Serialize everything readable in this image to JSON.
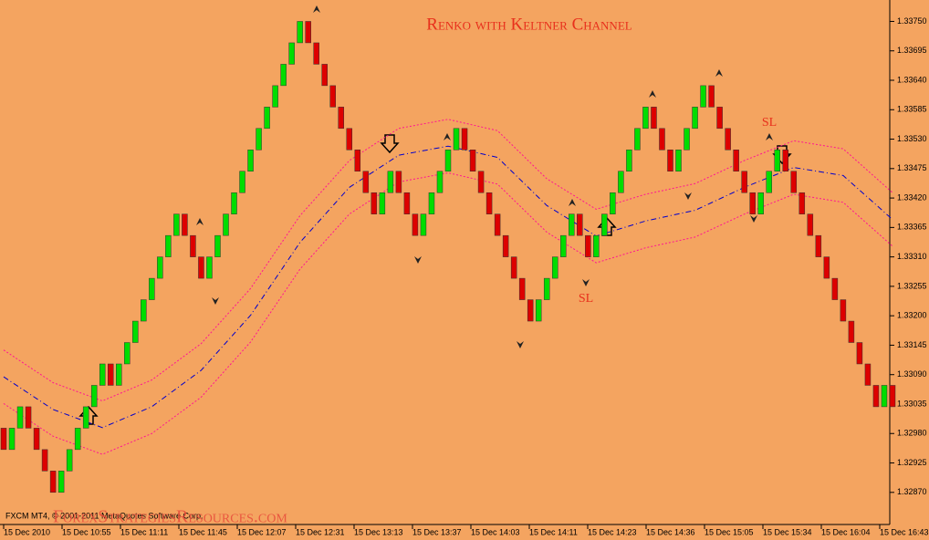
{
  "chart_data": {
    "type": "renko",
    "title": "Renko with Keltner Channel",
    "up_color": "#00dd00",
    "down_color": "#dd0000",
    "open": [
      1.3299,
      1.3295,
      1.3299,
      1.3303,
      1.3299,
      1.3295,
      1.3291,
      1.3287,
      1.3291,
      1.3295,
      1.3299,
      1.3303,
      1.3307,
      1.3311,
      1.3307,
      1.3311,
      1.3315,
      1.3319,
      1.3323,
      1.3327,
      1.3331,
      1.3335,
      1.3339,
      1.3335,
      1.3331,
      1.3327,
      1.3331,
      1.3335,
      1.3339,
      1.3343,
      1.3347,
      1.3351,
      1.3355,
      1.3359,
      1.3363,
      1.3367,
      1.3371,
      1.3375,
      1.3371,
      1.3367,
      1.3363,
      1.3359,
      1.3355,
      1.3351,
      1.3347,
      1.3343,
      1.3339,
      1.3343,
      1.3347,
      1.3343,
      1.3339,
      1.3335,
      1.3339,
      1.3343,
      1.3347,
      1.3351,
      1.3355,
      1.3351,
      1.3347,
      1.3343,
      1.3339,
      1.3335,
      1.3331,
      1.3327,
      1.3323,
      1.3319,
      1.3323,
      1.3327,
      1.3331,
      1.3335,
      1.3339,
      1.3335,
      1.3331,
      1.3335,
      1.3339,
      1.3343,
      1.3347,
      1.3351,
      1.3355,
      1.3359,
      1.3355,
      1.3351,
      1.3347,
      1.3351,
      1.3355,
      1.3359,
      1.3363,
      1.3359,
      1.3355,
      1.3351,
      1.3347,
      1.3343,
      1.3339,
      1.3343,
      1.3347,
      1.3351,
      1.3347,
      1.3343,
      1.3339,
      1.3335,
      1.3331,
      1.3327,
      1.3323,
      1.3319,
      1.3315,
      1.3311,
      1.3307,
      1.3303,
      1.3307
    ],
    "close": [
      1.3295,
      1.3299,
      1.3303,
      1.3299,
      1.3295,
      1.3291,
      1.3287,
      1.3291,
      1.3295,
      1.3299,
      1.3303,
      1.3307,
      1.3311,
      1.3307,
      1.3311,
      1.3315,
      1.3319,
      1.3323,
      1.3327,
      1.3331,
      1.3335,
      1.3339,
      1.3335,
      1.3331,
      1.3327,
      1.3331,
      1.3335,
      1.3339,
      1.3343,
      1.3347,
      1.3351,
      1.3355,
      1.3359,
      1.3363,
      1.3367,
      1.3371,
      1.3375,
      1.3371,
      1.3367,
      1.3363,
      1.3359,
      1.3355,
      1.3351,
      1.3347,
      1.3343,
      1.3339,
      1.3343,
      1.3347,
      1.3343,
      1.3339,
      1.3335,
      1.3339,
      1.3343,
      1.3347,
      1.3351,
      1.3355,
      1.3351,
      1.3347,
      1.3343,
      1.3339,
      1.3335,
      1.3331,
      1.3327,
      1.3323,
      1.3319,
      1.3323,
      1.3327,
      1.3331,
      1.3335,
      1.3339,
      1.3335,
      1.3331,
      1.3335,
      1.3339,
      1.3343,
      1.3347,
      1.3351,
      1.3355,
      1.3359,
      1.3355,
      1.3351,
      1.3347,
      1.3351,
      1.3355,
      1.3359,
      1.3363,
      1.3359,
      1.3355,
      1.3351,
      1.3347,
      1.3343,
      1.3339,
      1.3343,
      1.3347,
      1.3351,
      1.3347,
      1.3343,
      1.3339,
      1.3335,
      1.3331,
      1.3327,
      1.3323,
      1.3319,
      1.3315,
      1.3311,
      1.3307,
      1.3303,
      1.3307,
      1.3303
    ],
    "line_x": [
      0,
      6,
      12,
      18,
      24,
      30,
      36,
      42,
      48,
      54,
      60,
      66,
      72,
      78,
      84,
      90,
      96,
      102,
      108
    ],
    "lines": [
      {
        "color": "#ff1493",
        "style": "dotted",
        "values": [
          1.33136,
          1.33075,
          1.33041,
          1.3308,
          1.33148,
          1.33251,
          1.33387,
          1.3349,
          1.3355,
          1.33567,
          1.33546,
          1.33456,
          1.33399,
          1.33427,
          1.33447,
          1.3349,
          1.33527,
          1.33512,
          1.3343
        ]
      },
      {
        "color": "#0000cc",
        "style": "dashdot",
        "values": [
          1.33086,
          1.33025,
          1.32991,
          1.3303,
          1.33098,
          1.33201,
          1.33337,
          1.3344,
          1.335,
          1.33517,
          1.33496,
          1.33406,
          1.33349,
          1.33377,
          1.33397,
          1.3344,
          1.33477,
          1.33462,
          1.3338
        ]
      },
      {
        "color": "#ff1493",
        "style": "dotted",
        "values": [
          1.33036,
          1.32975,
          1.32941,
          1.3298,
          1.33048,
          1.33151,
          1.33287,
          1.3339,
          1.3345,
          1.33467,
          1.33446,
          1.33356,
          1.33299,
          1.33327,
          1.33347,
          1.3339,
          1.33427,
          1.33412,
          1.3333
        ]
      }
    ],
    "ylim": [
      1.3281,
      1.3379
    ],
    "yticks": [
      {
        "value": 1.3375,
        "label": "1.33750"
      },
      1.33695,
      {
        "value": 1.3364,
        "label": "1.33640"
      },
      1.33585,
      {
        "value": 1.3353,
        "label": "1.33530"
      },
      1.33475,
      {
        "value": 1.3342,
        "label": "1.33420"
      },
      1.33365,
      {
        "value": 1.3331,
        "label": "1.33310"
      },
      1.33255,
      {
        "value": 1.332,
        "label": "1.33200"
      },
      1.33145,
      {
        "value": 1.3309,
        "label": "1.33090"
      },
      1.33035,
      {
        "value": 1.3298,
        "label": "1.32980"
      },
      1.32925,
      {
        "value": 1.3287,
        "label": "1.32870"
      }
    ],
    "x_labels": [
      "15 Dec 2010",
      "15 Dec 10:55",
      "15 Dec 11:11",
      "15 Dec 11:45",
      "15 Dec 12:07",
      "15 Dec 12:31",
      "15 Dec 13:13",
      "15 Dec 13:37",
      "15 Dec 14:03",
      "15 Dec 14:11",
      "15 Dec 14:23",
      "15 Dec 14:36",
      "15 Dec 15:05",
      "15 Dec 15:34",
      "15 Dec 16:04",
      "15 Dec 16:43"
    ],
    "annotations": [
      "SL",
      "SL"
    ],
    "copyright": "FXCM MT4, © 2001-2011 MetaQuotes Software Corp.",
    "watermark": "ForexStrategiesResources.com"
  }
}
